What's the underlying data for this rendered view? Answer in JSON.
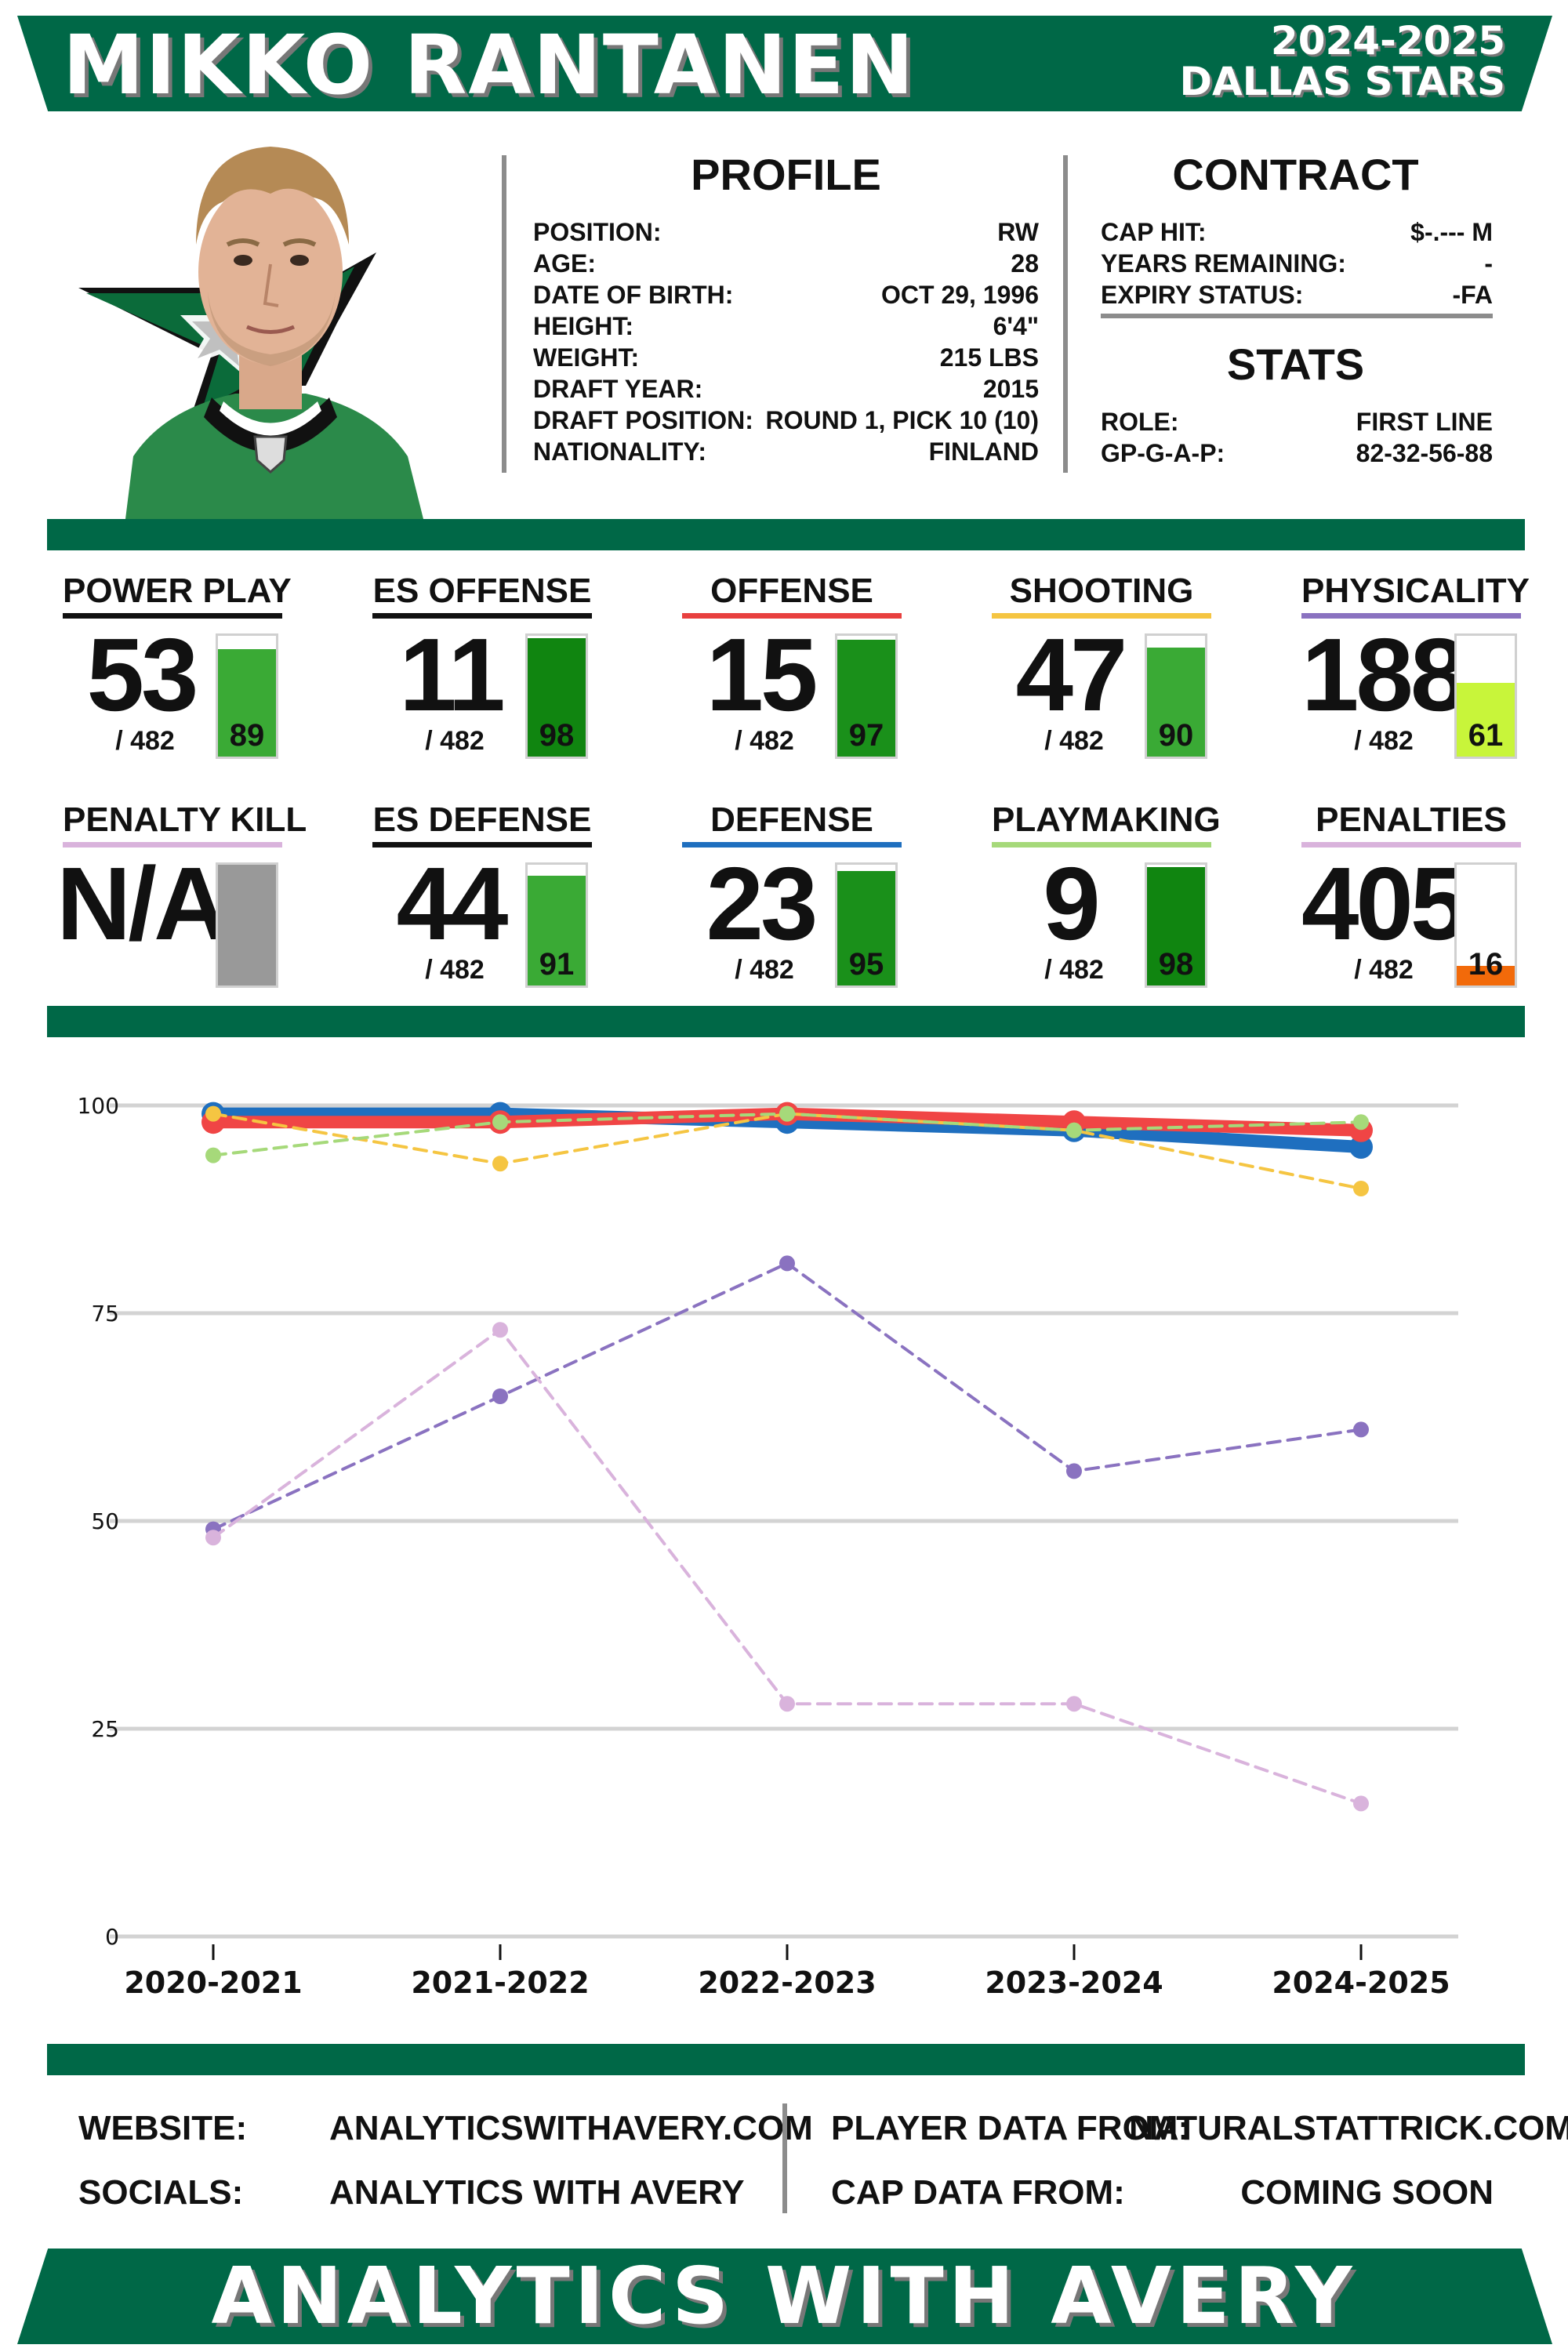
{
  "header": {
    "player_name": "MIKKO RANTANEN",
    "season": "2024-2025",
    "team": "DALLAS STARS"
  },
  "profile": {
    "title": "PROFILE",
    "rows": [
      {
        "label": "POSITION:",
        "value": "RW"
      },
      {
        "label": "AGE:",
        "value": "28"
      },
      {
        "label": "DATE OF BIRTH:",
        "value": "OCT 29, 1996"
      },
      {
        "label": "HEIGHT:",
        "value": "6'4\""
      },
      {
        "label": "WEIGHT:",
        "value": "215 LBS"
      },
      {
        "label": "DRAFT YEAR:",
        "value": "2015"
      },
      {
        "label": "DRAFT POSITION:",
        "value": "ROUND 1, PICK 10 (10)"
      },
      {
        "label": "NATIONALITY:",
        "value": "FINLAND"
      }
    ]
  },
  "contract": {
    "title": "CONTRACT",
    "rows": [
      {
        "label": "CAP HIT:",
        "value": "$-.--- M"
      },
      {
        "label": "YEARS REMAINING:",
        "value": "-"
      },
      {
        "label": "EXPIRY STATUS:",
        "value": "-FA"
      }
    ]
  },
  "stats": {
    "title": "STATS",
    "rows": [
      {
        "label": "ROLE:",
        "value": "FIRST LINE"
      },
      {
        "label": "GP-G-A-P:",
        "value": "82-32-56-88"
      }
    ]
  },
  "metrics": [
    {
      "label": "POWER PLAY",
      "rank": "53",
      "total": "/ 482",
      "percentile": 89,
      "pct_text": "89",
      "underline": "#111111",
      "fill": "#3aaa35"
    },
    {
      "label": "ES OFFENSE",
      "rank": "11",
      "total": "/ 482",
      "percentile": 98,
      "pct_text": "98",
      "underline": "#111111",
      "fill": "#108510"
    },
    {
      "label": "OFFENSE",
      "rank": "15",
      "total": "/ 482",
      "percentile": 97,
      "pct_text": "97",
      "underline": "#e8403f",
      "fill": "#1a901a"
    },
    {
      "label": "SHOOTING",
      "rank": "47",
      "total": "/ 482",
      "percentile": 90,
      "pct_text": "90",
      "underline": "#f5c542",
      "fill": "#3aaa35"
    },
    {
      "label": "PHYSICALITY",
      "rank": "188",
      "total": "/ 482",
      "percentile": 61,
      "pct_text": "61",
      "underline": "#8a72c0",
      "fill": "#c8f53a"
    },
    {
      "label": "PENALTY KILL",
      "rank": "N/A",
      "total": "",
      "percentile": 100,
      "pct_text": "",
      "underline": "#d9b3dc",
      "fill": "#999999"
    },
    {
      "label": "ES DEFENSE",
      "rank": "44",
      "total": "/ 482",
      "percentile": 91,
      "pct_text": "91",
      "underline": "#111111",
      "fill": "#3aaa35"
    },
    {
      "label": "DEFENSE",
      "rank": "23",
      "total": "/ 482",
      "percentile": 95,
      "pct_text": "95",
      "underline": "#1f6fbf",
      "fill": "#1a901a"
    },
    {
      "label": "PLAYMAKING",
      "rank": "9",
      "total": "/ 482",
      "percentile": 98,
      "pct_text": "98",
      "underline": "#a6d97a",
      "fill": "#108510"
    },
    {
      "label": "PENALTIES",
      "rank": "405",
      "total": "/ 482",
      "percentile": 16,
      "pct_text": "16",
      "underline": "#d9b3dc",
      "fill": "#f26a0a"
    }
  ],
  "chart_data": {
    "type": "line",
    "x": [
      "2020-2021",
      "2021-2022",
      "2022-2023",
      "2023-2024",
      "2024-2025"
    ],
    "ylim": [
      0,
      100
    ],
    "yticks": [
      "0",
      "25",
      "50",
      "75",
      "100"
    ],
    "grid": true,
    "series": [
      {
        "color": "#1f6fbf",
        "style": "solid",
        "width": 16,
        "values": [
          99,
          99,
          98,
          97,
          95
        ]
      },
      {
        "color": "#f04545",
        "style": "solid",
        "width": 16,
        "values": [
          98,
          98,
          99,
          98,
          97
        ]
      },
      {
        "color": "#f5c542",
        "style": "dashed",
        "width": 4,
        "values": [
          99,
          93,
          99,
          97,
          90
        ]
      },
      {
        "color": "#a6d97a",
        "style": "dashed",
        "width": 4,
        "values": [
          94,
          98,
          99,
          97,
          98
        ]
      },
      {
        "color": "#8a72c0",
        "style": "dashed",
        "width": 4,
        "values": [
          49,
          65,
          81,
          56,
          61
        ]
      },
      {
        "color": "#d9b3dc",
        "style": "dashed",
        "width": 4,
        "values": [
          48,
          73,
          28,
          28,
          16
        ]
      }
    ]
  },
  "footer": {
    "website_label": "WEBSITE:",
    "website_value": "ANALYTICSWITHAVERY.COM",
    "socials_label": "SOCIALS:",
    "socials_value": "ANALYTICS WITH AVERY",
    "player_data_label": "PLAYER DATA FROM:",
    "player_data_value": "NATURALSTATTRICK.COM",
    "cap_data_label": "CAP DATA FROM:",
    "cap_data_value": "COMING SOON",
    "brand": "ANALYTICS WITH AVERY"
  },
  "colors": {
    "brand_green": "#006847",
    "divider_gray": "#8c8c8c"
  }
}
